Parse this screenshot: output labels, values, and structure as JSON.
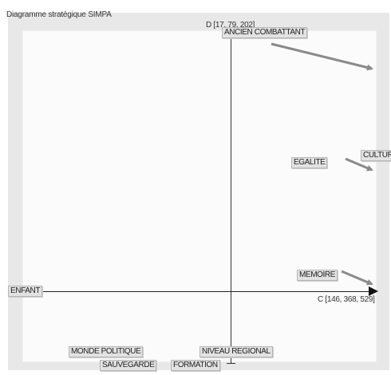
{
  "title": "Diagramme stratégique SIMPA",
  "axes": {
    "top": "D [17, 79, 202]",
    "right": "C [146, 368, 529]"
  },
  "labels": {
    "ancien_combattant": "ANCIEN COMBATTANT",
    "culture": "CULTURE",
    "egalite": "EGALITE",
    "memoire": "MEMOIRE",
    "enfant": "ENFANT",
    "monde_politique": "MONDE POLITIQUE",
    "sauvegarde": "SAUVEGARDE",
    "niveau_regional": "NIVEAU REGIONAL",
    "formation": "FORMATION"
  },
  "colors": {
    "arrow": "#8a8a8a",
    "axis": "#222222",
    "label_bg": "#e2e2e2"
  }
}
